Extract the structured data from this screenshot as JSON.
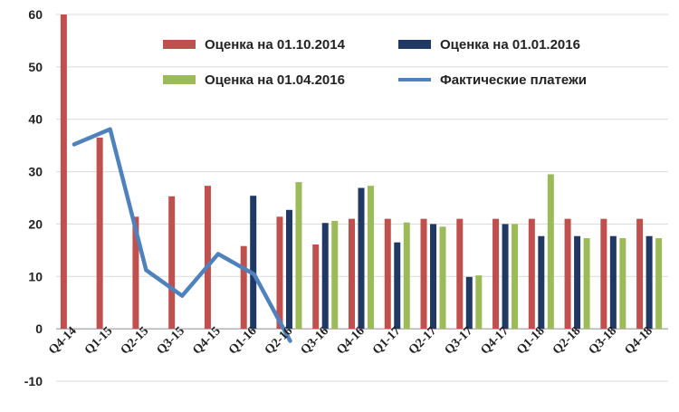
{
  "chart_data": {
    "type": "bar",
    "categories": [
      "Q4-14",
      "Q1-15",
      "Q2-15",
      "Q3-15",
      "Q4-15",
      "Q1-16",
      "Q2-16",
      "Q3-16",
      "Q4-16",
      "Q1-17",
      "Q2-17",
      "Q3-17",
      "Q4-17",
      "Q1-18",
      "Q2-18",
      "Q3-18",
      "Q4-18"
    ],
    "series": [
      {
        "name": "Оценка на 01.10.2014",
        "type": "bar",
        "color": "#c0504d",
        "values": [
          60,
          36.5,
          21.4,
          25.3,
          27.3,
          15.8,
          21.4,
          16.1,
          21,
          21,
          21,
          21,
          21,
          21,
          21,
          21,
          21
        ]
      },
      {
        "name": "Оценка на 01.01.2016",
        "type": "bar",
        "color": "#1f3864",
        "values": [
          null,
          null,
          null,
          null,
          null,
          25.4,
          22.7,
          20.2,
          26.9,
          16.5,
          20,
          9.9,
          20,
          17.7,
          17.7,
          17.7,
          17.7
        ]
      },
      {
        "name": "Оценка на 01.04.2016",
        "type": "bar",
        "color": "#9bbb59",
        "values": [
          null,
          null,
          null,
          null,
          null,
          null,
          28,
          20.6,
          27.3,
          20.3,
          19.5,
          10.2,
          20,
          29.5,
          17.3,
          17.3,
          17.3
        ]
      },
      {
        "name": "Фактические платежи",
        "type": "line",
        "color": "#4f81bd",
        "values": [
          35.2,
          38.1,
          11.2,
          6.3,
          14.3,
          10.4,
          -2.3,
          null,
          null,
          null,
          null,
          null,
          null,
          null,
          null,
          null,
          null
        ]
      }
    ],
    "yticks": [
      "60",
      "50",
      "40",
      "30",
      "20",
      "10",
      "0",
      "-10"
    ],
    "ylim": [
      -10,
      60
    ],
    "grid": true,
    "legend": "top-right"
  }
}
